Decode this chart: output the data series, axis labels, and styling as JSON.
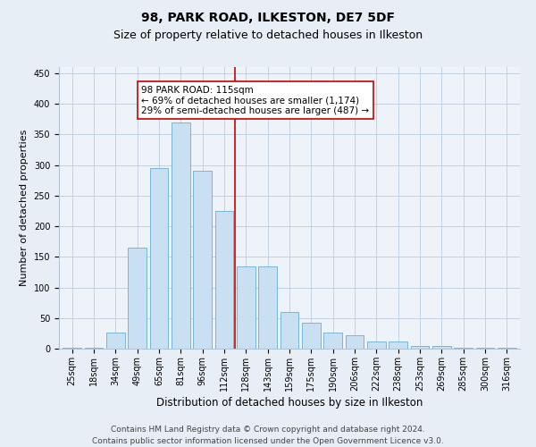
{
  "title1": "98, PARK ROAD, ILKESTON, DE7 5DF",
  "title2": "Size of property relative to detached houses in Ilkeston",
  "xlabel": "Distribution of detached houses by size in Ilkeston",
  "ylabel": "Number of detached properties",
  "bar_labels": [
    "25sqm",
    "18sqm",
    "34sqm",
    "49sqm",
    "65sqm",
    "81sqm",
    "96sqm",
    "112sqm",
    "128sqm",
    "143sqm",
    "159sqm",
    "175sqm",
    "190sqm",
    "206sqm",
    "222sqm",
    "238sqm",
    "253sqm",
    "269sqm",
    "285sqm",
    "300sqm",
    "316sqm"
  ],
  "bar_values": [
    2,
    2,
    27,
    165,
    295,
    370,
    290,
    225,
    135,
    135,
    60,
    42,
    27,
    22,
    12,
    12,
    5,
    5,
    2,
    2,
    2
  ],
  "bar_color": "#c9dff2",
  "bar_edge_color": "#6aaed6",
  "vline_x": 7.5,
  "vline_color": "#cc0000",
  "annotation_title": "98 PARK ROAD: 115sqm",
  "annotation_line1": "← 69% of detached houses are smaller (1,174)",
  "annotation_line2": "29% of semi-detached houses are larger (487) →",
  "annotation_box_color": "#ffffff",
  "annotation_box_edge_color": "#cc0000",
  "ylim": [
    0,
    460
  ],
  "yticks": [
    0,
    50,
    100,
    150,
    200,
    250,
    300,
    350,
    400,
    450
  ],
  "footer1": "Contains HM Land Registry data © Crown copyright and database right 2024.",
  "footer2": "Contains public sector information licensed under the Open Government Licence v3.0.",
  "bg_color": "#e8eef5",
  "plot_bg_color": "#eef3f9",
  "title1_fontsize": 10,
  "title2_fontsize": 9,
  "xlabel_fontsize": 8.5,
  "ylabel_fontsize": 8,
  "tick_fontsize": 7,
  "footer_fontsize": 6.5,
  "annot_fontsize": 7.5
}
